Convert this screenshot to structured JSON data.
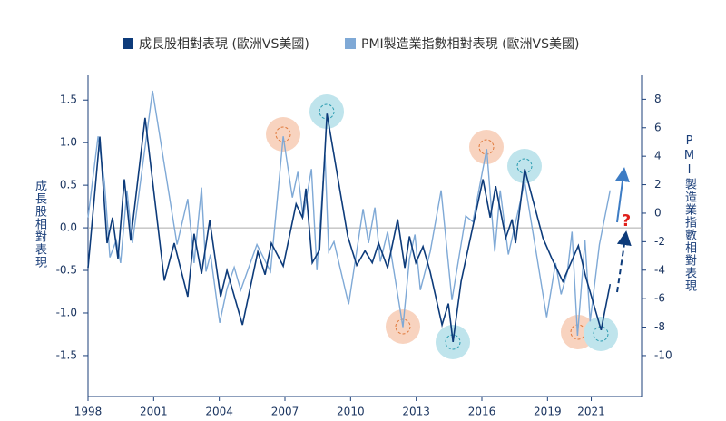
{
  "chart_data": {
    "type": "line",
    "y_label": "成長股相對表現",
    "y2_label": "PMI製造業指數相對表現",
    "annotation": "?",
    "xlim": [
      1998,
      2023.3
    ],
    "xticks": [
      1998,
      2001,
      2004,
      2007,
      2010,
      2013,
      2016,
      2019,
      2021
    ],
    "ylim": [
      -1.98,
      1.79
    ],
    "yticks": [
      -1.5,
      {
        "value": -1.0,
        "label": "-1.0"
      },
      -0.5,
      {
        "value": 0,
        "label": "0.0"
      },
      0.5,
      {
        "value": 1.0,
        "label": "1.0"
      },
      1.5
    ],
    "y2lim": [
      -12.87,
      9.68
    ],
    "y2ticks": [
      8,
      6,
      4,
      2,
      0,
      -2,
      -4,
      -6,
      -8,
      -10
    ],
    "series": [
      {
        "name": "成長股相對表現 (歐洲VS美國)",
        "color": "#0d3b7a",
        "axis": "y",
        "x": [
          1998.0,
          1998.54,
          1998.87,
          1999.12,
          1999.37,
          1999.66,
          1999.95,
          2000.61,
          2001.49,
          2001.94,
          2002.56,
          2002.85,
          2003.19,
          2003.56,
          2004.06,
          2004.35,
          2005.06,
          2005.76,
          2006.09,
          2006.38,
          2006.92,
          2007.51,
          2007.8,
          2007.96,
          2008.25,
          2008.58,
          2008.92,
          2009.87,
          2010.28,
          2010.66,
          2010.99,
          2011.28,
          2011.69,
          2012.15,
          2012.48,
          2012.69,
          2012.98,
          2013.31,
          2013.64,
          2014.18,
          2014.47,
          2014.68,
          2015.05,
          2016.05,
          2016.38,
          2016.63,
          2017.09,
          2017.38,
          2017.54,
          2017.96,
          2018.79,
          2019.2,
          2019.7,
          2020.41,
          2020.74,
          2021.45,
          2021.86
        ],
        "values": [
          -0.47,
          1.07,
          -0.18,
          0.12,
          -0.36,
          0.57,
          -0.15,
          1.29,
          -0.62,
          -0.18,
          -0.81,
          -0.07,
          -0.54,
          0.09,
          -0.81,
          -0.5,
          -1.14,
          -0.28,
          -0.55,
          -0.18,
          -0.45,
          0.28,
          0.12,
          0.46,
          -0.41,
          -0.26,
          1.34,
          -0.1,
          -0.44,
          -0.27,
          -0.41,
          -0.18,
          -0.47,
          0.1,
          -0.47,
          -0.1,
          -0.41,
          -0.22,
          -0.52,
          -1.14,
          -0.89,
          -1.34,
          -0.63,
          0.57,
          0.12,
          0.49,
          -0.12,
          0.1,
          -0.18,
          0.69,
          -0.12,
          -0.36,
          -0.63,
          -0.21,
          -0.57,
          -1.2,
          -0.66
        ]
      },
      {
        "name": "PMI製造業指數相對表現 (歐洲VS美國)",
        "color": "#7fa9d6",
        "axis": "y2",
        "x": [
          1998.0,
          1998.46,
          1998.75,
          1999.0,
          1999.29,
          1999.49,
          1999.78,
          2000.03,
          2000.95,
          2002.07,
          2002.56,
          2002.85,
          2003.19,
          2003.39,
          2003.6,
          2004.02,
          2004.35,
          2004.68,
          2004.98,
          2005.72,
          2006.34,
          2006.92,
          2007.34,
          2007.59,
          2007.83,
          2008.21,
          2008.46,
          2008.83,
          2009.0,
          2009.24,
          2009.91,
          2010.57,
          2010.82,
          2011.11,
          2011.36,
          2011.69,
          2012.39,
          2012.69,
          2012.94,
          2013.19,
          2013.64,
          2014.14,
          2014.63,
          2015.26,
          2015.59,
          2016.22,
          2016.59,
          2016.84,
          2017.21,
          2017.96,
          2018.96,
          2019.37,
          2019.62,
          2019.91,
          2020.12,
          2020.37,
          2020.71,
          2020.95,
          2021.37,
          2021.86
        ],
        "values": [
          -0.3,
          5.4,
          2.2,
          -3.1,
          -1.9,
          -3.5,
          1.6,
          -2.1,
          8.6,
          -2.2,
          1.0,
          -3.5,
          1.8,
          -4.1,
          -2.9,
          -7.7,
          -5.3,
          -3.8,
          -5.4,
          -2.2,
          -4.1,
          5.4,
          1.1,
          2.9,
          -0.3,
          3.1,
          -4.0,
          4.1,
          -2.7,
          -2.0,
          -6.4,
          0.3,
          -2.1,
          0.4,
          -3.4,
          -1.3,
          -8.0,
          -3.2,
          -1.5,
          -5.4,
          -2.7,
          1.6,
          -6.1,
          -0.2,
          -0.6,
          4.5,
          -2.7,
          1.6,
          -2.9,
          2.2,
          -7.3,
          -3.5,
          -5.7,
          -4.1,
          -1.3,
          -8.6,
          -1.9,
          -7.6,
          -2.2,
          1.6
        ]
      }
    ]
  }
}
